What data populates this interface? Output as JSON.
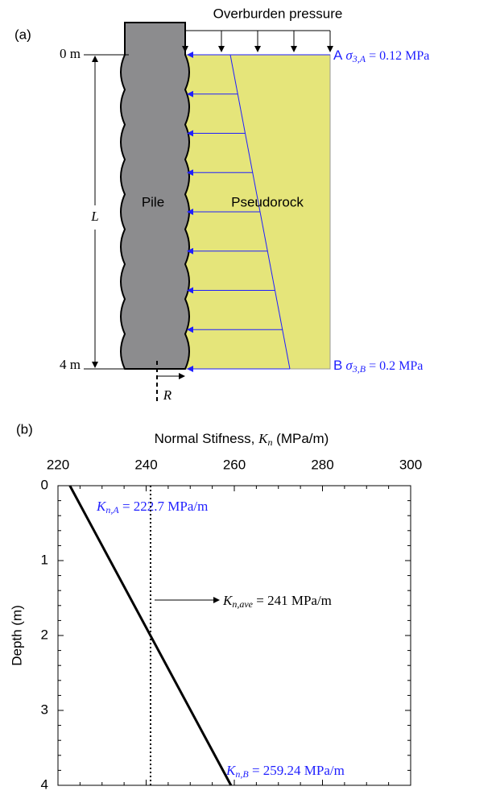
{
  "diagram": {
    "panel_label": "(a)",
    "load_label": "Overburden pressure",
    "depth_top": "0 m",
    "depth_bottom": "4 m",
    "length_symbol": "L",
    "radius_symbol": "R",
    "pile_label": "Pile",
    "soil_label": "Pseudorock",
    "point_a": {
      "name": "A",
      "symbol": "σ",
      "subscript": "3,A",
      "text": " = 0.12 MPa"
    },
    "point_b": {
      "name": "B",
      "symbol": "σ",
      "subscript": "3,B",
      "text": " = 0.2 MPa"
    }
  },
  "chart_data": {
    "type": "line",
    "panel_label": "(b)",
    "xlabel": {
      "text": "Normal Stifness, ",
      "symbol": "K",
      "subscript": "n",
      "unit": " (MPa/m)"
    },
    "ylabel": "Depth (m)",
    "x": [
      222.7,
      259.24
    ],
    "values": [
      0,
      4
    ],
    "color": "#000000",
    "xlim": [
      220,
      300
    ],
    "xticks": [
      220,
      240,
      260,
      280,
      300
    ],
    "xminorticks": [
      225,
      230,
      235,
      245,
      250,
      255,
      265,
      270,
      275,
      285,
      290,
      295
    ],
    "ylim": [
      0,
      4
    ],
    "y_reversed": true,
    "yticks": [
      0,
      1,
      2,
      3,
      4
    ],
    "yminorticks": [
      0.2,
      0.4,
      0.6,
      0.8,
      1.2,
      1.4,
      1.6,
      1.8,
      2.2,
      2.4,
      2.6,
      2.8,
      3.2,
      3.4,
      3.6,
      3.8
    ],
    "reference_line": {
      "x": 241,
      "style": "dotted"
    },
    "annotations": [
      {
        "symbol": "K",
        "subscript": "n,A",
        "text": " = 222.7 MPa/m"
      },
      {
        "symbol": "K",
        "subscript": "n,ave",
        "text": " = 241 MPa/m"
      },
      {
        "symbol": "K",
        "subscript": "n,B",
        "text": " = 259.24 MPa/m"
      }
    ]
  }
}
